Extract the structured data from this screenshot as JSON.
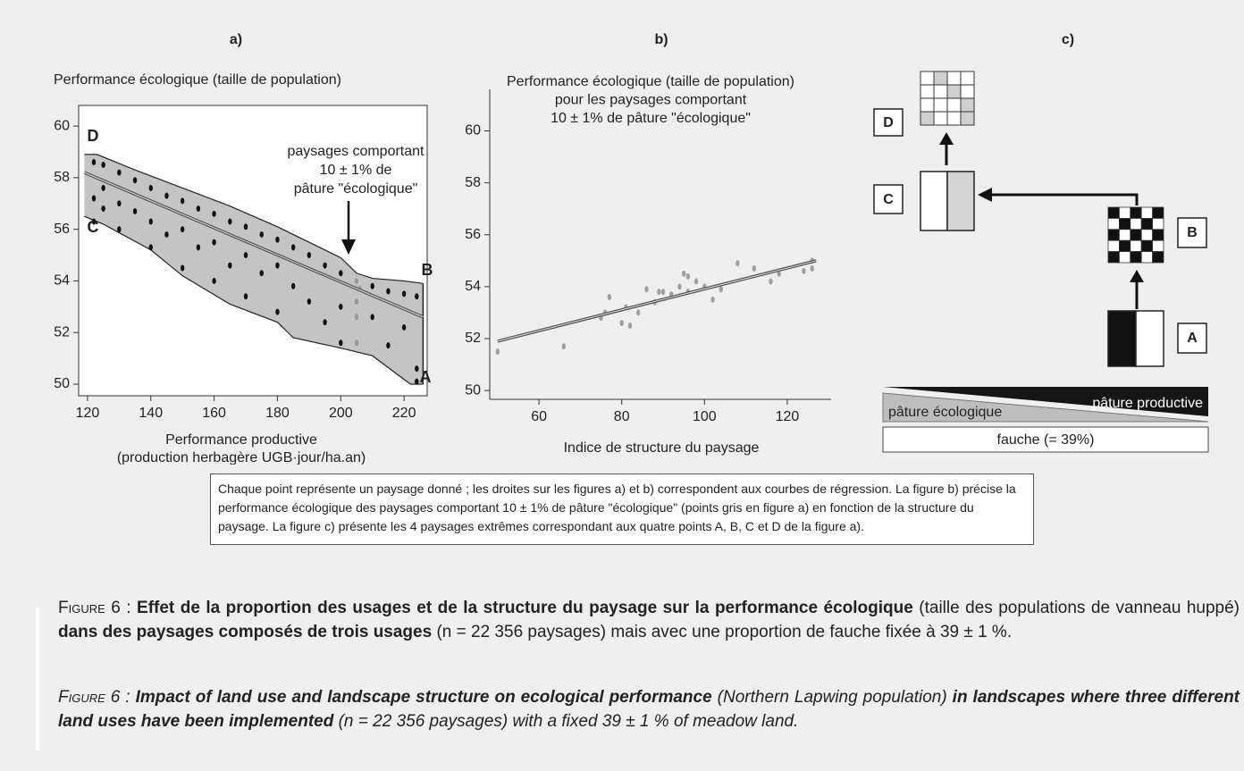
{
  "chart_data": [
    {
      "type": "scatter",
      "title": "a)",
      "ylabel": "Performance écologique (taille de population)",
      "xlabel": [
        "Performance productive",
        "(production herbagère UGB·jour/ha.an)"
      ],
      "xlim": [
        117.2,
        227.3
      ],
      "ylim": [
        49.55,
        60.8
      ],
      "xticks": [
        120,
        140,
        160,
        180,
        200,
        220
      ],
      "yticks": [
        50,
        52,
        54,
        56,
        58,
        60
      ],
      "envelope_color": "#c4c4c4",
      "envelope_upper": {
        "x": [
          119,
          123,
          135,
          150,
          165,
          180,
          195,
          200,
          205,
          210,
          220,
          226
        ],
        "values": [
          58.9,
          58.9,
          58.3,
          57.6,
          56.9,
          56.1,
          55.2,
          54.9,
          54.3,
          54.1,
          54.0,
          53.9
        ]
      },
      "envelope_lower": {
        "x": [
          119,
          125,
          140,
          150,
          165,
          180,
          185,
          200,
          210,
          222,
          226
        ],
        "values": [
          56.5,
          56.2,
          55.2,
          54.2,
          53.1,
          52.4,
          51.8,
          51.4,
          51.1,
          50.0,
          50.0
        ]
      },
      "regression": {
        "color": "#555555",
        "x": [
          119,
          226
        ],
        "values": [
          58.2,
          52.6
        ]
      },
      "series": [
        {
          "color": "#111111",
          "x": [
            122,
            122,
            122,
            125,
            125,
            125,
            130,
            130,
            130,
            135,
            135,
            140,
            140,
            140,
            145,
            145,
            150,
            150,
            150,
            155,
            155,
            160,
            160,
            160,
            165,
            165,
            170,
            170,
            170,
            175,
            175,
            180,
            180,
            180,
            185,
            185,
            190,
            190,
            195,
            195,
            200,
            200,
            200,
            210,
            210,
            215,
            215,
            220,
            220,
            224,
            224,
            224
          ],
          "values": [
            58.6,
            57.2,
            56.3,
            58.5,
            57.6,
            56.8,
            58.2,
            57,
            56,
            57.9,
            56.7,
            57.6,
            56.3,
            55.3,
            57.3,
            55.8,
            57.1,
            56,
            54.5,
            56.8,
            55.3,
            56.6,
            55.5,
            54,
            56.3,
            54.6,
            56.1,
            55,
            53.4,
            55.8,
            54.3,
            55.6,
            54.6,
            52.8,
            55.3,
            53.8,
            55,
            53.2,
            54.6,
            52.4,
            54.3,
            53,
            51.6,
            53.8,
            52.6,
            53.6,
            51.5,
            53.5,
            52.2,
            53.4,
            50.6,
            50.1
          ]
        },
        {
          "color": "#9a9a9a",
          "x": [
            205,
            205,
            205,
            205,
            206
          ],
          "values": [
            54,
            53.2,
            52.6,
            51.6,
            53.7
          ]
        }
      ],
      "point_labels": [
        "D",
        "C",
        "B",
        "A"
      ],
      "annotation": [
        "paysages comportant",
        "10 ± 1% de",
        "pâture \"écologique\""
      ]
    },
    {
      "type": "scatter",
      "title": "b)",
      "ylabel": [
        "Performance écologique (taille de population)",
        "pour les paysages comportant",
        "10 ± 1% de pâture \"écologique\""
      ],
      "xlabel": [
        "Indice de structure du paysage"
      ],
      "xlim": [
        48.1,
        130.6
      ],
      "ylim": [
        49.66,
        61.6
      ],
      "xticks": [
        60,
        80,
        100,
        120
      ],
      "yticks": [
        50,
        52,
        54,
        56,
        58,
        60
      ],
      "regression": {
        "color": "#555555",
        "x": [
          50,
          127
        ],
        "values": [
          51.9,
          55.0
        ]
      },
      "series": [
        {
          "color": "#a0a0a0",
          "x": [
            50,
            66,
            75,
            76,
            77,
            80,
            81,
            82,
            84,
            86,
            88,
            89,
            90,
            92,
            94,
            95,
            96,
            96,
            98,
            100,
            102,
            104,
            108,
            112,
            116,
            118,
            124,
            126,
            126
          ],
          "values": [
            51.5,
            51.7,
            52.8,
            53.0,
            53.6,
            52.6,
            53.2,
            52.5,
            53.0,
            53.9,
            53.4,
            53.8,
            53.8,
            53.7,
            54.0,
            54.5,
            54.4,
            53.8,
            54.2,
            54.0,
            53.5,
            53.9,
            54.9,
            54.7,
            54.2,
            54.5,
            54.6,
            54.7,
            55.0
          ]
        }
      ]
    }
  ],
  "diagram": {
    "title": "c)",
    "labels": [
      "D",
      "C",
      "B",
      "A"
    ],
    "bars": [
      "pâture productive",
      "pâture écologique",
      "fauche (= 39%)"
    ]
  },
  "note": "Chaque point représente un paysage donné ; les droites sur les figures a) et b) correspondent aux courbes de régression. La figure b) précise la performance écologique des paysages comportant 10 ± 1% de pâture \"écologique\" (points gris en figure a) en fonction de la structure du paysage. La figure c) présente les 4 paysages extrêmes correspondant aux quatre points A, B, C et D de la figure a).",
  "caption_fr": [
    "Figure 6 :",
    "Effet de la proportion des usages et de la structure du paysage sur la performance écologique",
    "(taille des populations de vanneau huppé)",
    "dans des paysages composés de trois usages",
    "(n = 22 356 paysages) mais avec une proportion de fauche fixée à 39 ± 1 %."
  ],
  "caption_en": [
    "Figure 6 :",
    "Impact of land use and landscape structure on ecological performance",
    "(Northern Lapwing population)",
    "in landscapes where three different land uses have been implemented",
    "(n = 22 356 paysages) with a fixed 39 ± 1 % of meadow land."
  ]
}
